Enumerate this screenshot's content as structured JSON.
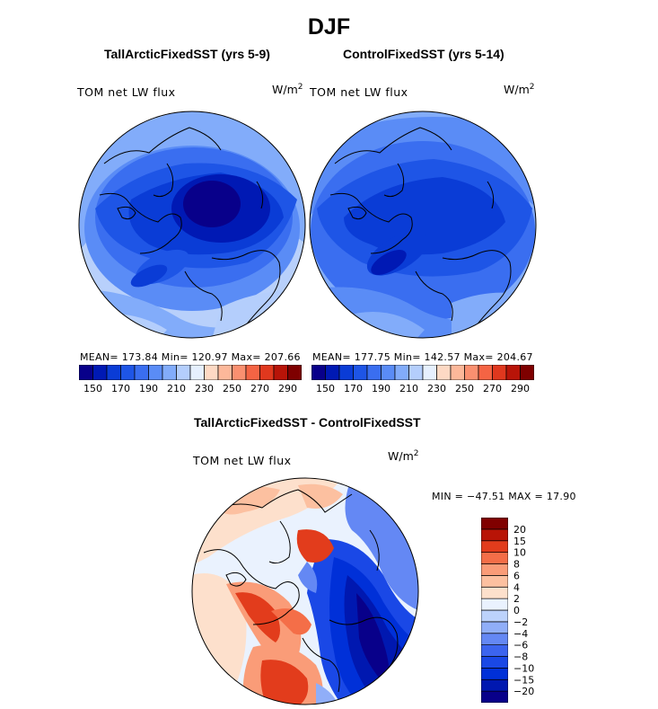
{
  "figure": {
    "title": "DJF",
    "unit_base": "W/m",
    "unit_exp": "2"
  },
  "chart_data": [
    {
      "type": "heatmap",
      "projection": "north-polar-stereographic",
      "title": "TallArcticFixedSST (yrs 5-9)",
      "variable": "TOM net LW flux",
      "unit": "W/m2",
      "stats": {
        "mean": 173.84,
        "min": 120.97,
        "max": 207.66
      },
      "stats_text": "MEAN= 173.84   Min= 120.97   Max= 207.66",
      "colorbar": {
        "orientation": "horizontal",
        "levels": [
          150,
          160,
          170,
          180,
          190,
          200,
          210,
          220,
          230,
          240,
          250,
          260,
          270,
          280,
          290
        ],
        "tick_labels": [
          "150",
          "170",
          "190",
          "210",
          "230",
          "250",
          "270",
          "290"
        ],
        "colors": [
          "#08008a",
          "#0019b4",
          "#0a3cd6",
          "#1e55e6",
          "#3a6ef0",
          "#5a8cf6",
          "#82acfa",
          "#b4cefc",
          "#e6f0fe",
          "#fdd9c4",
          "#fcb89a",
          "#fa9070",
          "#f46444",
          "#e0381e",
          "#b81408",
          "#7e0000"
        ]
      }
    },
    {
      "type": "heatmap",
      "projection": "north-polar-stereographic",
      "title": "ControlFixedSST (yrs 5-14)",
      "variable": "TOM net LW flux",
      "unit": "W/m2",
      "stats": {
        "mean": 177.75,
        "min": 142.57,
        "max": 204.67
      },
      "stats_text": "MEAN= 177.75   Min= 142.57   Max= 204.67",
      "colorbar": {
        "orientation": "horizontal",
        "levels": [
          150,
          160,
          170,
          180,
          190,
          200,
          210,
          220,
          230,
          240,
          250,
          260,
          270,
          280,
          290
        ],
        "tick_labels": [
          "150",
          "170",
          "190",
          "210",
          "230",
          "250",
          "270",
          "290"
        ],
        "colors": [
          "#08008a",
          "#0019b4",
          "#0a3cd6",
          "#1e55e6",
          "#3a6ef0",
          "#5a8cf6",
          "#82acfa",
          "#b4cefc",
          "#e6f0fe",
          "#fdd9c4",
          "#fcb89a",
          "#fa9070",
          "#f46444",
          "#e0381e",
          "#b81408",
          "#7e0000"
        ]
      }
    },
    {
      "type": "heatmap",
      "projection": "north-polar-stereographic",
      "title": "TallArcticFixedSST - ControlFixedSST",
      "variable": "TOM net LW flux",
      "unit": "W/m2",
      "stats": {
        "min": -47.51,
        "max": 17.9
      },
      "stats_text": "MIN = −47.51  MAX =   17.90",
      "colorbar": {
        "orientation": "vertical",
        "levels": [
          -20,
          -15,
          -10,
          -8,
          -6,
          -4,
          -2,
          0,
          2,
          4,
          6,
          8,
          10,
          15,
          20
        ],
        "tick_labels": [
          "20",
          "15",
          "10",
          "8",
          "6",
          "4",
          "2",
          "0",
          "−2",
          "−4",
          "−6",
          "−8",
          "−10",
          "−15",
          "−20"
        ],
        "colors": [
          "#08008a",
          "#0018b0",
          "#0030d8",
          "#1a48e6",
          "#3c64ee",
          "#6488f4",
          "#90aef8",
          "#bcd2fb",
          "#eaf2fe",
          "#fde0cc",
          "#fcc0a0",
          "#fa9c78",
          "#f46e48",
          "#e23c1c",
          "#b81406",
          "#800000"
        ]
      }
    }
  ]
}
